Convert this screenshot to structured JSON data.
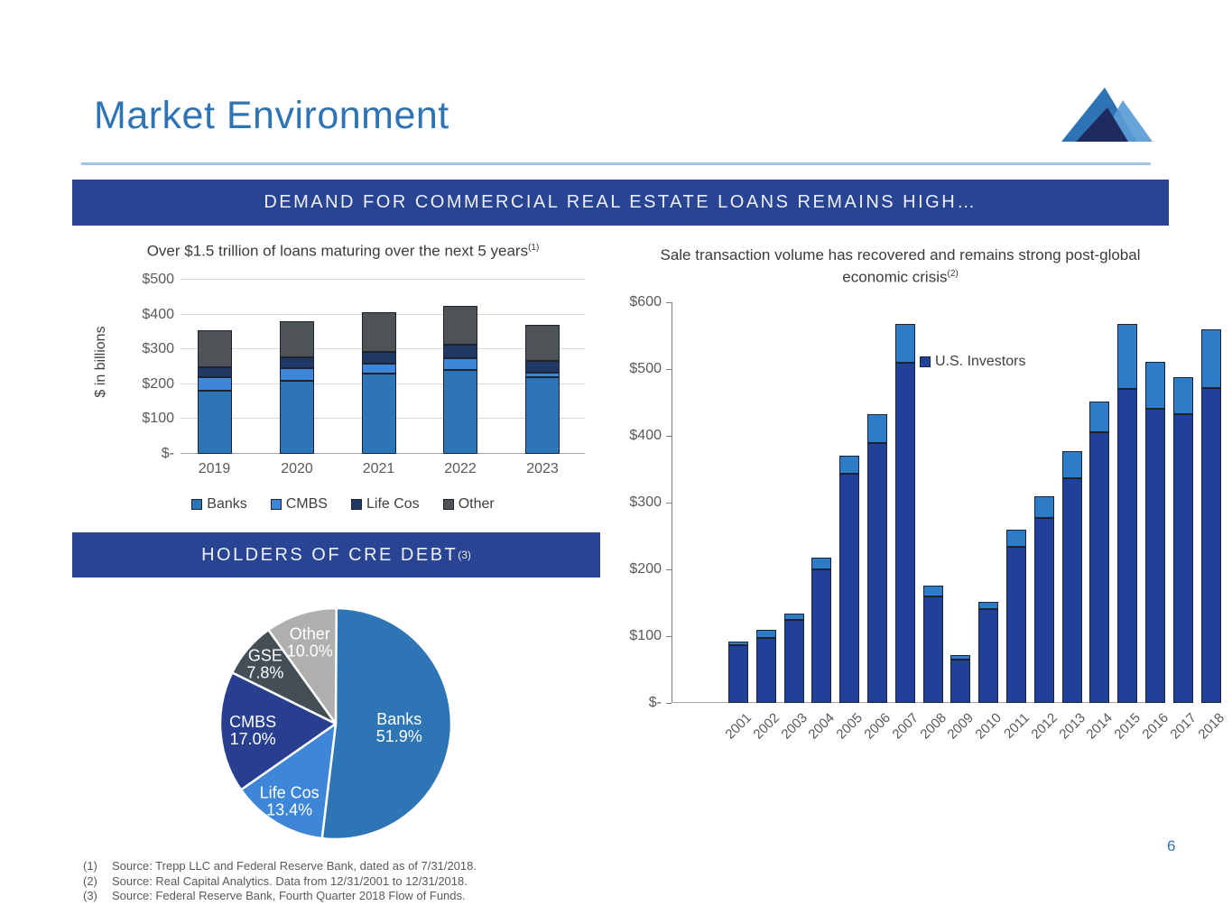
{
  "slide": {
    "title": "Market Environment",
    "page_number": "6",
    "banner_top": "DEMAND FOR COMMERCIAL REAL ESTATE LOANS REMAINS HIGH…",
    "banner_pie": "HOLDERS OF CRE DEBT",
    "banner_pie_sup": "(3)",
    "footnotes": [
      {
        "num": "(1)",
        "text": "Source: Trepp LLC and Federal Reserve Bank, dated as of 7/31/2018."
      },
      {
        "num": "(2)",
        "text": "Source: Real Capital Analytics. Data from 12/31/2001 to 12/31/2018."
      },
      {
        "num": "(3)",
        "text": "Source: Federal Reserve Bank, Fourth Quarter 2018 Flow of Funds."
      }
    ]
  },
  "colors": {
    "title_blue": "#2E74B5",
    "banner_blue": "#2A4494",
    "divider_light_blue": "#9DC3E6",
    "logo_medium_blue": "#2E74B5",
    "logo_light_blue": "#5B9BD5",
    "logo_dark_navy": "#1F2A5E",
    "axis_gray": "#595959",
    "footnote_gray": "#595959"
  },
  "chart_data": [
    {
      "id": "loan-maturities",
      "type": "bar",
      "stacked": true,
      "title": "Over $1.5 trillion of loans maturing over the next 5 years",
      "title_sup": "(1)",
      "ylabel": "$ in billions",
      "xlabel": "",
      "categories": [
        "2019",
        "2020",
        "2021",
        "2022",
        "2023"
      ],
      "series": [
        {
          "name": "Banks",
          "color": "#2E75B6",
          "values": [
            182,
            210,
            230,
            242,
            220
          ]
        },
        {
          "name": "CMBS",
          "color": "#3E86D8",
          "values": [
            37,
            36,
            29,
            33,
            13
          ]
        },
        {
          "name": "Life Cos",
          "color": "#203864",
          "values": [
            30,
            30,
            33,
            39,
            35
          ]
        },
        {
          "name": "Other",
          "color": "#4E5456",
          "values": [
            107,
            104,
            116,
            110,
            103
          ]
        }
      ],
      "ylim": [
        0,
        500
      ],
      "yticks": [
        {
          "label": "$500",
          "value": 500
        },
        {
          "label": "$400",
          "value": 400
        },
        {
          "label": "$300",
          "value": 300
        },
        {
          "label": "$200",
          "value": 200
        },
        {
          "label": "$100",
          "value": 100
        },
        {
          "label": "$-",
          "value": 0
        }
      ],
      "grid": true,
      "legend_position": "bottom"
    },
    {
      "id": "sale-transaction-volume",
      "type": "bar",
      "stacked": true,
      "title": "Sale transaction volume has recovered and remains strong post-global economic crisis",
      "title_sup": "(2)",
      "ylabel": "",
      "xlabel": "",
      "categories": [
        "2001",
        "2002",
        "2003",
        "2004",
        "2005",
        "2006",
        "2007",
        "2008",
        "2009",
        "2010",
        "2011",
        "2012",
        "2013",
        "2014",
        "2015",
        "2016",
        "2017",
        "2018"
      ],
      "series": [
        {
          "name": "U.S. Investors",
          "color": "#21409A",
          "values": [
            87,
            97,
            124,
            200,
            343,
            389,
            510,
            159,
            65,
            140,
            234,
            277,
            336,
            406,
            470,
            440,
            433,
            471
          ]
        },
        {
          "name": "",
          "color": "#2E7BC8",
          "values": [
            5,
            12,
            10,
            18,
            27,
            43,
            57,
            17,
            6,
            12,
            25,
            32,
            41,
            45,
            98,
            71,
            55,
            89
          ]
        }
      ],
      "ylim": [
        0,
        600
      ],
      "yticks": [
        {
          "label": "$600",
          "value": 600
        },
        {
          "label": "$500",
          "value": 500
        },
        {
          "label": "$400",
          "value": 400
        },
        {
          "label": "$300",
          "value": 300
        },
        {
          "label": "$200",
          "value": 200
        },
        {
          "label": "$100",
          "value": 100
        },
        {
          "label": "$-",
          "value": 0
        }
      ],
      "grid": false,
      "legend_visible": [
        "U.S. Investors"
      ],
      "legend_position": "inside-upper-middle",
      "xtick_rotation": 45
    },
    {
      "id": "holders-of-cre-debt",
      "type": "pie",
      "start_angle": "top",
      "direction": "clockwise",
      "slices": [
        {
          "label": "Banks",
          "pct_label": "51.9%",
          "value": 51.9,
          "color": "#2E75B6"
        },
        {
          "label": "Life Cos",
          "pct_label": "13.4%",
          "value": 13.4,
          "color": "#3E86D8"
        },
        {
          "label": "CMBS",
          "pct_label": "17.0%",
          "value": 17.0,
          "color": "#283F8F"
        },
        {
          "label": "GSE",
          "pct_label": "7.8%",
          "value": 7.8,
          "color": "#434E57"
        },
        {
          "label": "Other",
          "pct_label": "10.0%",
          "value": 10.0,
          "color": "#AFAFAF"
        }
      ]
    }
  ]
}
